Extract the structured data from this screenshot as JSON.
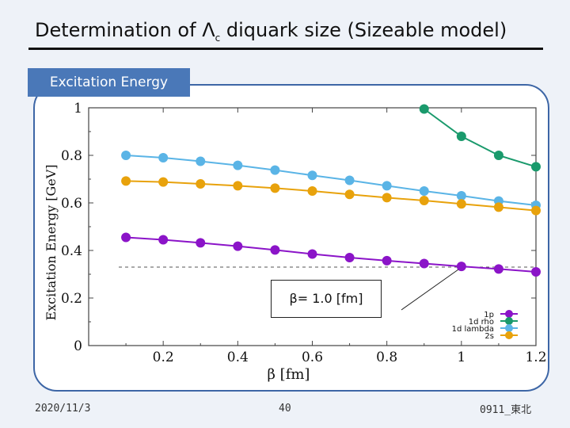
{
  "slide": {
    "title_prefix": "Determination of Λ",
    "title_sub": "c",
    "title_suffix": " diquark size (Sizeable model)",
    "section_tab": "Excitation Energy",
    "annotation": "β= 1.0 [fm]",
    "footer_date": "2020/11/3",
    "footer_page": "40",
    "footer_id": "0911_東北"
  },
  "chart_data": {
    "type": "line",
    "xlabel": "β [fm]",
    "ylabel": "Excitation Energy [GeV]",
    "xlim": [
      0.0,
      1.2
    ],
    "ylim": [
      0,
      1
    ],
    "xticks": [
      "0.2",
      "0.4",
      "0.6",
      "0.8",
      "1",
      "1.2"
    ],
    "yticks": [
      "0",
      "0.2",
      "0.4",
      "0.6",
      "0.8",
      "1"
    ],
    "reference_line_y": 0.33,
    "legend_position": "bottom-right",
    "series": [
      {
        "name": "1p",
        "color": "#8b14c8",
        "x": [
          0.1,
          0.2,
          0.3,
          0.4,
          0.5,
          0.6,
          0.7,
          0.8,
          0.9,
          1.0,
          1.1,
          1.2
        ],
        "values": [
          0.455,
          0.445,
          0.432,
          0.418,
          0.402,
          0.385,
          0.37,
          0.357,
          0.345,
          0.333,
          0.322,
          0.31
        ]
      },
      {
        "name": "1d rho",
        "color": "#1a9a6c",
        "x": [
          0.9,
          1.0,
          1.1,
          1.2
        ],
        "values": [
          0.995,
          0.88,
          0.8,
          0.752
        ]
      },
      {
        "name": "1d lambda",
        "color": "#5ab4e6",
        "x": [
          0.1,
          0.2,
          0.3,
          0.4,
          0.5,
          0.6,
          0.7,
          0.8,
          0.9,
          1.0,
          1.1,
          1.2
        ],
        "values": [
          0.8,
          0.79,
          0.775,
          0.758,
          0.738,
          0.716,
          0.695,
          0.672,
          0.65,
          0.63,
          0.608,
          0.59
        ]
      },
      {
        "name": "2s",
        "color": "#e8a20c",
        "x": [
          0.1,
          0.2,
          0.3,
          0.4,
          0.5,
          0.6,
          0.7,
          0.8,
          0.9,
          1.0,
          1.1,
          1.2
        ],
        "values": [
          0.692,
          0.688,
          0.68,
          0.672,
          0.662,
          0.65,
          0.636,
          0.622,
          0.61,
          0.596,
          0.582,
          0.568
        ]
      }
    ]
  }
}
